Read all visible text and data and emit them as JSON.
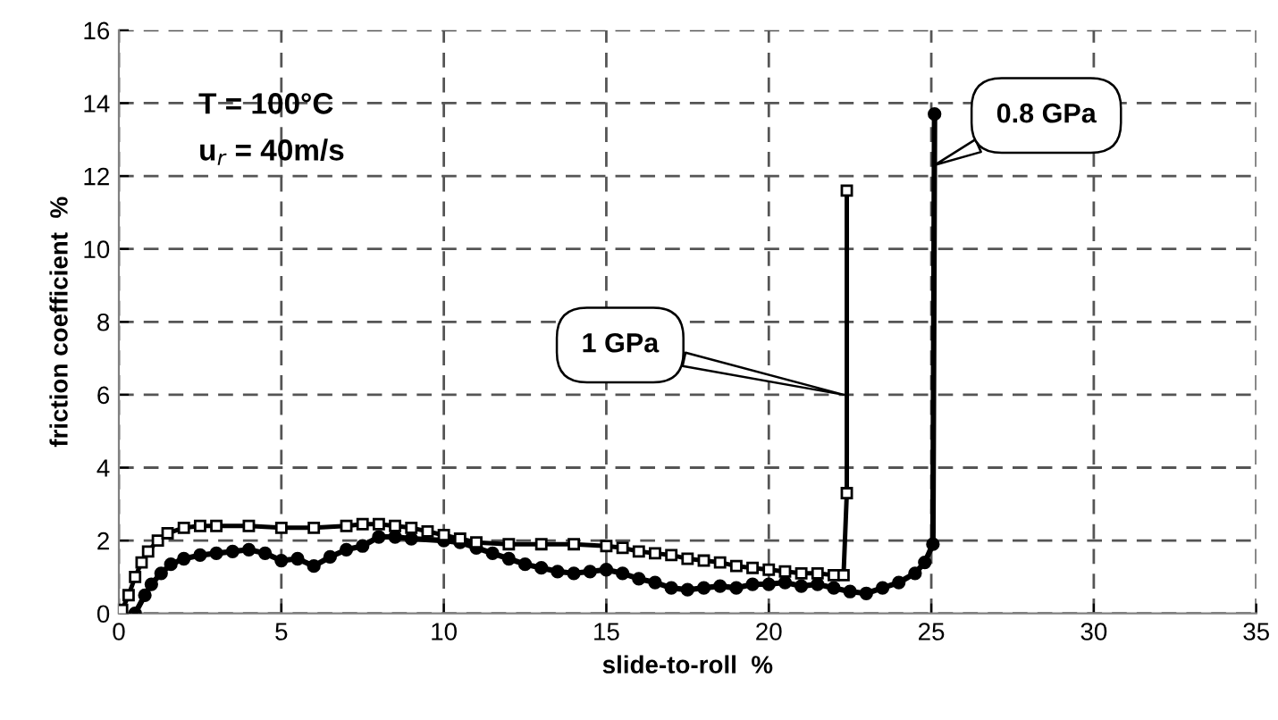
{
  "chart_data": {
    "type": "line",
    "xlabel": "slide-to-roll  %",
    "ylabel": "friction coefficient  %",
    "xlim": [
      0,
      35
    ],
    "xticks": [
      0,
      5,
      10,
      15,
      20,
      25,
      30,
      35
    ],
    "ylim": [
      0,
      16
    ],
    "yticks": [
      0,
      2,
      4,
      6,
      8,
      10,
      12,
      14,
      16
    ],
    "grid": true,
    "line_style": "solid",
    "series": [
      {
        "color": "#000000",
        "marker": "square",
        "x": [
          0.1,
          0.3,
          0.5,
          0.7,
          0.9,
          1.2,
          1.5,
          2,
          2.5,
          3,
          4,
          5,
          6,
          7,
          7.5,
          8,
          8.5,
          9,
          9.5,
          10,
          10.5,
          11,
          12,
          13,
          14,
          15,
          15.5,
          16,
          16.5,
          17,
          17.5,
          18,
          18.5,
          19,
          19.5,
          20,
          20.5,
          21,
          21.5,
          22,
          22.3,
          22.4,
          22.4
        ],
        "values": [
          0.1,
          0.5,
          1.0,
          1.4,
          1.7,
          2.0,
          2.2,
          2.35,
          2.4,
          2.4,
          2.4,
          2.35,
          2.35,
          2.4,
          2.45,
          2.45,
          2.4,
          2.35,
          2.25,
          2.15,
          2.05,
          1.95,
          1.9,
          1.9,
          1.9,
          1.85,
          1.8,
          1.7,
          1.65,
          1.6,
          1.5,
          1.45,
          1.4,
          1.3,
          1.25,
          1.2,
          1.15,
          1.1,
          1.1,
          1.05,
          1.05,
          3.3,
          11.6
        ]
      },
      {
        "color": "#000000",
        "marker": "circle",
        "x": [
          0.5,
          0.8,
          1.0,
          1.3,
          1.6,
          2,
          2.5,
          3,
          3.5,
          4,
          4.5,
          5,
          5.5,
          6,
          6.5,
          7,
          7.5,
          8,
          8.5,
          9,
          10,
          10.5,
          11,
          11.5,
          12,
          12.5,
          13,
          13.5,
          14,
          14.5,
          15,
          15.5,
          16,
          16.5,
          17,
          17.5,
          18,
          18.5,
          19,
          19.5,
          20,
          20.5,
          21,
          21.5,
          22,
          22.5,
          23,
          23.5,
          24,
          24.5,
          24.8,
          25.05,
          25.1
        ],
        "values": [
          0.0,
          0.5,
          0.8,
          1.1,
          1.35,
          1.5,
          1.6,
          1.65,
          1.7,
          1.75,
          1.65,
          1.45,
          1.5,
          1.3,
          1.55,
          1.75,
          1.85,
          2.1,
          2.1,
          2.05,
          2.0,
          1.95,
          1.8,
          1.65,
          1.5,
          1.35,
          1.25,
          1.15,
          1.1,
          1.15,
          1.2,
          1.1,
          0.95,
          0.85,
          0.7,
          0.65,
          0.7,
          0.75,
          0.7,
          0.8,
          0.8,
          0.85,
          0.75,
          0.8,
          0.7,
          0.6,
          0.55,
          0.7,
          0.85,
          1.1,
          1.4,
          1.9,
          13.7
        ]
      }
    ],
    "annotations": [
      "T = 100°C",
      "u$_{r}$ = 40m/s",
      {
        "text": "1 GPa",
        "x": 22.3,
        "y": 6
      },
      {
        "text": "0.8 GPa",
        "x": 25.1,
        "y": 12.3
      }
    ]
  }
}
